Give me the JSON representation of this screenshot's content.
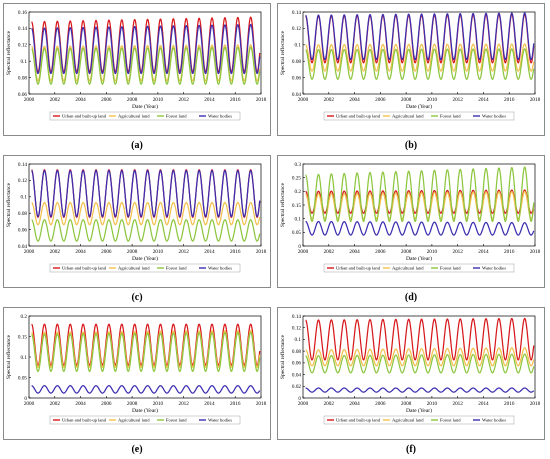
{
  "colors": {
    "urban": "#d7191c",
    "agricultural": "#f2c14e",
    "forest": "#8dc63f",
    "water": "#3b2fb0"
  },
  "chart_data": [
    {
      "type": "line",
      "panel_label": "(a)",
      "xlabel": "Date (Year)",
      "ylabel": "Spectral reflectance",
      "xlim": [
        2000,
        2018
      ],
      "ylim": [
        0.06,
        0.16
      ],
      "xticks": [
        "2000",
        "2002",
        "2004",
        "2006",
        "2008",
        "2010",
        "2012",
        "2014",
        "2016",
        "2018"
      ],
      "yticks": [
        "0.06",
        "0.08",
        "0.1",
        "0.12",
        "0.14",
        "0.16"
      ],
      "cycles_per_year": 1,
      "x_start": 2000.2,
      "x_end": 2017.9,
      "legend": [
        "Urban and built-up land",
        "Agricultural land",
        "Forest land",
        "Water bodies"
      ],
      "series": [
        {
          "name": "Urban and built-up land",
          "color_key": "urban",
          "min": 0.087,
          "max": 0.148,
          "max_end": 0.154
        },
        {
          "name": "Agricultural land",
          "color_key": "agricultural",
          "min": 0.076,
          "max": 0.118,
          "max_end": 0.12
        },
        {
          "name": "Forest land",
          "color_key": "forest",
          "min": 0.072,
          "max": 0.115,
          "max_end": 0.117
        },
        {
          "name": "Water bodies",
          "color_key": "water",
          "min": 0.085,
          "max": 0.14,
          "max_end": 0.145
        }
      ]
    },
    {
      "type": "line",
      "panel_label": "(b)",
      "xlabel": "Date (Year)",
      "ylabel": "Spectral reflectance",
      "xlim": [
        2000,
        2018
      ],
      "ylim": [
        0.04,
        0.14
      ],
      "xticks": [
        "2000",
        "2002",
        "2004",
        "2006",
        "2008",
        "2010",
        "2012",
        "2014",
        "2016",
        "2018"
      ],
      "yticks": [
        "0.04",
        "0.06",
        "0.08",
        "0.1",
        "0.12",
        "0.14"
      ],
      "cycles_per_year": 1,
      "x_start": 2000.2,
      "x_end": 2017.9,
      "legend": [
        "Urban and built-up land",
        "Agricultural land",
        "Forest land",
        "Water bodies"
      ],
      "series": [
        {
          "name": "Urban and built-up land",
          "color_key": "urban",
          "min": 0.078,
          "max": 0.135,
          "max_end": 0.137
        },
        {
          "name": "Agricultural land",
          "color_key": "agricultural",
          "min": 0.068,
          "max": 0.1,
          "max_end": 0.101
        },
        {
          "name": "Forest land",
          "color_key": "forest",
          "min": 0.058,
          "max": 0.094,
          "max_end": 0.095
        },
        {
          "name": "Water bodies",
          "color_key": "water",
          "min": 0.082,
          "max": 0.136,
          "max_end": 0.139
        }
      ]
    },
    {
      "type": "line",
      "panel_label": "(c)",
      "xlabel": "Date (Year)",
      "ylabel": "Spectral reflectance",
      "xlim": [
        2000,
        2018
      ],
      "ylim": [
        0.04,
        0.14
      ],
      "xticks": [
        "2000",
        "2002",
        "2004",
        "2006",
        "2008",
        "2010",
        "2012",
        "2014",
        "2016",
        "2018"
      ],
      "yticks": [
        "0.04",
        "0.06",
        "0.08",
        "0.1",
        "0.12",
        "0.14"
      ],
      "cycles_per_year": 1,
      "x_start": 2000.2,
      "x_end": 2017.9,
      "legend": [
        "Urban and built-up land",
        "Agricultural land",
        "Forest land",
        "Water bodies"
      ],
      "series": [
        {
          "name": "Urban and built-up land",
          "color_key": "urban",
          "min": 0.075,
          "max": 0.133,
          "max_end": 0.133
        },
        {
          "name": "Agricultural land",
          "color_key": "agricultural",
          "min": 0.066,
          "max": 0.093,
          "max_end": 0.093
        },
        {
          "name": "Forest land",
          "color_key": "forest",
          "min": 0.046,
          "max": 0.072,
          "max_end": 0.072
        },
        {
          "name": "Water bodies",
          "color_key": "water",
          "min": 0.076,
          "max": 0.132,
          "max_end": 0.132
        }
      ]
    },
    {
      "type": "line",
      "panel_label": "(d)",
      "xlabel": "Date (Year)",
      "ylabel": "Spectral reflectance",
      "xlim": [
        2000,
        2018
      ],
      "ylim": [
        0,
        0.3
      ],
      "xticks": [
        "2000",
        "2002",
        "2004",
        "2006",
        "2008",
        "2010",
        "2012",
        "2014",
        "2016",
        "2018"
      ],
      "yticks": [
        "0",
        "0.05",
        "0.1",
        "0.15",
        "0.2",
        "0.25",
        "0.3"
      ],
      "cycles_per_year": 1,
      "x_start": 2000.2,
      "x_end": 2017.9,
      "legend": [
        "Urban and built-up land",
        "Agricultural land",
        "Forest land",
        "Water bodies"
      ],
      "series": [
        {
          "name": "Urban and built-up land",
          "color_key": "urban",
          "min": 0.12,
          "max": 0.2,
          "max_end": 0.205
        },
        {
          "name": "Agricultural land",
          "color_key": "agricultural",
          "min": 0.1,
          "max": 0.19,
          "max_end": 0.2
        },
        {
          "name": "Forest land",
          "color_key": "forest",
          "min": 0.09,
          "max": 0.26,
          "max_end": 0.29
        },
        {
          "name": "Water bodies",
          "color_key": "water",
          "min": 0.04,
          "max": 0.09,
          "max_end": 0.085
        }
      ]
    },
    {
      "type": "line",
      "panel_label": "(e)",
      "xlabel": "Date (Year)",
      "ylabel": "Spectral reflectance",
      "xlim": [
        2000,
        2018
      ],
      "ylim": [
        0,
        0.2
      ],
      "xticks": [
        "2000",
        "2002",
        "2004",
        "2006",
        "2008",
        "2010",
        "2012",
        "2014",
        "2016",
        "2018"
      ],
      "yticks": [
        "0",
        "0.05",
        "0.1",
        "0.15",
        "0.2"
      ],
      "cycles_per_year": 1,
      "x_start": 2000.2,
      "x_end": 2017.9,
      "legend": [
        "Urban and built-up land",
        "Agricultural land",
        "Forest land",
        "Water bodies"
      ],
      "series": [
        {
          "name": "Urban and built-up land",
          "color_key": "urban",
          "min": 0.08,
          "max": 0.18,
          "max_end": 0.18
        },
        {
          "name": "Agricultural land",
          "color_key": "agricultural",
          "min": 0.075,
          "max": 0.16,
          "max_end": 0.165
        },
        {
          "name": "Forest land",
          "color_key": "forest",
          "min": 0.065,
          "max": 0.155,
          "max_end": 0.16
        },
        {
          "name": "Water bodies",
          "color_key": "water",
          "min": 0.012,
          "max": 0.03,
          "max_end": 0.03
        }
      ]
    },
    {
      "type": "line",
      "panel_label": "(f)",
      "xlabel": "Date (Year)",
      "ylabel": "Spectral reflectance",
      "xlim": [
        2000,
        2018
      ],
      "ylim": [
        0,
        0.14
      ],
      "xticks": [
        "2000",
        "2002",
        "2004",
        "2006",
        "2008",
        "2010",
        "2012",
        "2014",
        "2016",
        "2018"
      ],
      "yticks": [
        "0",
        "0.02",
        "0.04",
        "0.06",
        "0.08",
        "0.1",
        "0.12",
        "0.14"
      ],
      "cycles_per_year": 1,
      "x_start": 2000.2,
      "x_end": 2017.9,
      "legend": [
        "Urban and built-up land",
        "Agricultural land",
        "Forest land",
        "Water bodies"
      ],
      "series": [
        {
          "name": "Urban and built-up land",
          "color_key": "urban",
          "min": 0.065,
          "max": 0.133,
          "max_end": 0.136
        },
        {
          "name": "Agricultural land",
          "color_key": "agricultural",
          "min": 0.055,
          "max": 0.082,
          "max_end": 0.086
        },
        {
          "name": "Forest land",
          "color_key": "forest",
          "min": 0.043,
          "max": 0.072,
          "max_end": 0.075
        },
        {
          "name": "Water bodies",
          "color_key": "water",
          "min": 0.01,
          "max": 0.017,
          "max_end": 0.017
        }
      ]
    }
  ]
}
